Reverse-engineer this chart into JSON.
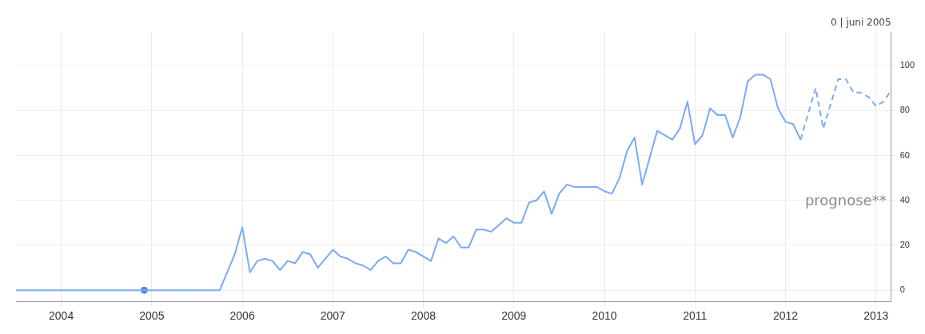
{
  "chart_data": {
    "type": "line",
    "annotations": [
      "0 | juni 2005",
      "prognose**"
    ],
    "xlim": [
      "2004-01",
      "2013-09"
    ],
    "xticks": [
      {
        "value": "2004-07",
        "label": "2004"
      },
      {
        "value": "2005-07",
        "label": "2005"
      },
      {
        "value": "2006-07",
        "label": "2006"
      },
      {
        "value": "2007-07",
        "label": "2007"
      },
      {
        "value": "2008-07",
        "label": "2008"
      },
      {
        "value": "2009-07",
        "label": "2009"
      },
      {
        "value": "2010-07",
        "label": "2010"
      },
      {
        "value": "2011-07",
        "label": "2011"
      },
      {
        "value": "2012-07",
        "label": "2012"
      },
      {
        "value": "2013-07",
        "label": "2013"
      }
    ],
    "ylim": [
      -5,
      115
    ],
    "yticks": [
      0,
      20,
      40,
      60,
      80,
      100
    ],
    "grid": true,
    "legend": false,
    "marker": "none",
    "series": [
      {
        "color": "#7aaaf5",
        "line_style": "solid",
        "x": [
          "2004-01",
          "2005-06",
          "2006-04",
          "2006-06",
          "2006-07",
          "2006-08",
          "2006-09",
          "2006-10",
          "2006-11",
          "2006-12",
          "2007-01",
          "2007-02",
          "2007-03",
          "2007-04",
          "2007-05",
          "2007-07",
          "2007-08",
          "2007-09",
          "2007-10",
          "2007-11",
          "2007-12",
          "2008-01",
          "2008-02",
          "2008-03",
          "2008-04",
          "2008-05",
          "2008-06",
          "2008-08",
          "2008-09",
          "2008-10",
          "2008-11",
          "2008-12",
          "2009-01",
          "2009-02",
          "2009-03",
          "2009-04",
          "2009-05",
          "2009-06",
          "2009-07",
          "2009-08",
          "2009-09",
          "2009-10",
          "2009-11",
          "2009-12",
          "2010-01",
          "2010-02",
          "2010-03",
          "2010-04",
          "2010-05",
          "2010-06",
          "2010-07",
          "2010-08",
          "2010-09",
          "2010-10",
          "2010-11",
          "2010-12",
          "2011-02",
          "2011-04",
          "2011-05",
          "2011-06",
          "2011-07",
          "2011-08",
          "2011-09",
          "2011-10",
          "2011-11",
          "2011-12",
          "2012-01",
          "2012-02",
          "2012-03",
          "2012-04",
          "2012-05",
          "2012-06",
          "2012-07",
          "2012-08",
          "2012-09"
        ],
        "values": [
          0,
          0,
          0,
          16,
          28,
          8,
          13,
          14,
          13,
          9,
          13,
          12,
          17,
          16,
          10,
          18,
          15,
          14,
          12,
          11,
          9,
          13,
          15,
          12,
          12,
          18,
          17,
          13,
          23,
          21,
          24,
          19,
          19,
          27,
          27,
          26,
          29,
          32,
          30,
          30,
          39,
          40,
          44,
          34,
          43,
          47,
          46,
          46,
          46,
          46,
          44,
          43,
          50,
          62,
          68,
          47,
          71,
          67,
          72,
          84,
          65,
          69,
          81,
          78,
          78,
          68,
          77,
          93,
          96,
          96,
          94,
          81,
          75,
          74,
          67
        ]
      },
      {
        "color": "#7aaaf5",
        "line_style": "dashed",
        "x": [
          "2012-09",
          "2012-11",
          "2012-12",
          "2013-02",
          "2013-03",
          "2013-04",
          "2013-05",
          "2013-06",
          "2013-07",
          "2013-08",
          "2013-09"
        ],
        "values": [
          67,
          90,
          72,
          94,
          94,
          88,
          88,
          86,
          82,
          84,
          89
        ]
      },
      {
        "type": "scatter",
        "marker": "circle",
        "color": "#4a86e8",
        "x": [
          "2005-06"
        ],
        "values": [
          0
        ]
      }
    ]
  }
}
